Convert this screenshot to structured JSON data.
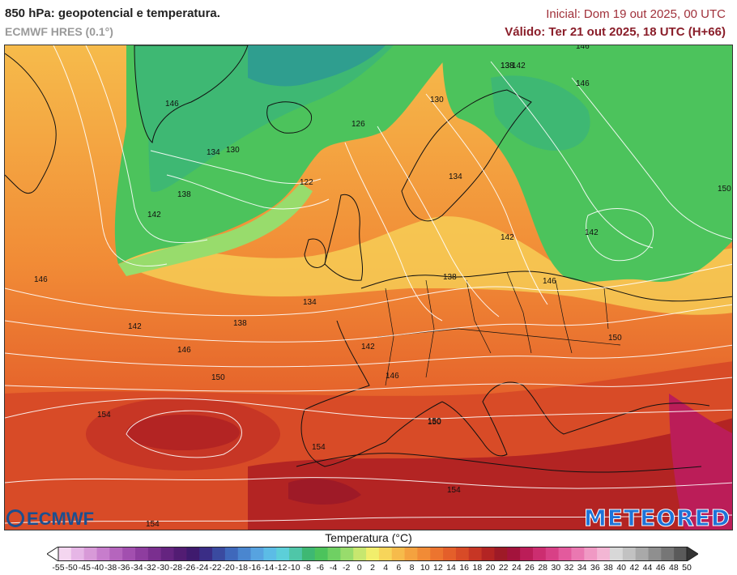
{
  "header": {
    "title": "850 hPa: geopotencial e temperatura.",
    "model": "ECMWF HRES (0.1°)",
    "initial": "Inicial: Dom 19 out 2025, 00 UTC",
    "valid": "Válido: Ter 21 out 2025, 18 UTC (H+66)"
  },
  "logos": {
    "left": "ECMWF",
    "right": "METEORED"
  },
  "colorbar": {
    "title": "Temperatura (°C)",
    "labels": [
      "-55",
      "-50",
      "-45",
      "-40",
      "-38",
      "-36",
      "-34",
      "-32",
      "-30",
      "-28",
      "-26",
      "-24",
      "-22",
      "-20",
      "-18",
      "-16",
      "-14",
      "-12",
      "-10",
      "-8",
      "-6",
      "-4",
      "-2",
      "0",
      "2",
      "4",
      "6",
      "8",
      "10",
      "12",
      "14",
      "16",
      "18",
      "20",
      "22",
      "24",
      "26",
      "28",
      "30",
      "32",
      "34",
      "36",
      "38",
      "40",
      "42",
      "44",
      "46",
      "48",
      "50"
    ],
    "colors": [
      "#f4d6f0",
      "#e6b6e6",
      "#d89ad8",
      "#c77dcc",
      "#b565bd",
      "#a24faf",
      "#8e3d9f",
      "#7a2f8f",
      "#652480",
      "#521c73",
      "#3f1a6e",
      "#3a2d86",
      "#3a4aa0",
      "#3f68bb",
      "#4a86cf",
      "#57a3e0",
      "#5cbce6",
      "#5ccfd9",
      "#4fc6a8",
      "#3eb873",
      "#4cc35c",
      "#6fd063",
      "#98dc6c",
      "#c7e76f",
      "#f1ee6c",
      "#f7d55a",
      "#f6bb4b",
      "#f4a23f",
      "#f18b36",
      "#ec742f",
      "#e45f2a",
      "#d84b27",
      "#c73625",
      "#b32423",
      "#9e1a27",
      "#a3133c",
      "#bb1d58",
      "#cc2d70",
      "#d84086",
      "#e35a9d",
      "#ea78b1",
      "#f099c4",
      "#f3b6d4",
      "#d8d8d8",
      "#c2c2c2",
      "#a9a9a9",
      "#8f8f8f",
      "#767676",
      "#5a5a5a"
    ]
  },
  "contour_labels": [
    "146",
    "142",
    "138",
    "134",
    "130",
    "126",
    "122",
    "150",
    "154",
    "146",
    "142",
    "138",
    "134",
    "130",
    "138",
    "142",
    "146",
    "150",
    "134",
    "138",
    "142",
    "146",
    "150",
    "154",
    "154",
    "154",
    "146",
    "142",
    "146",
    "150",
    "150",
    "146",
    "142",
    "138"
  ]
}
